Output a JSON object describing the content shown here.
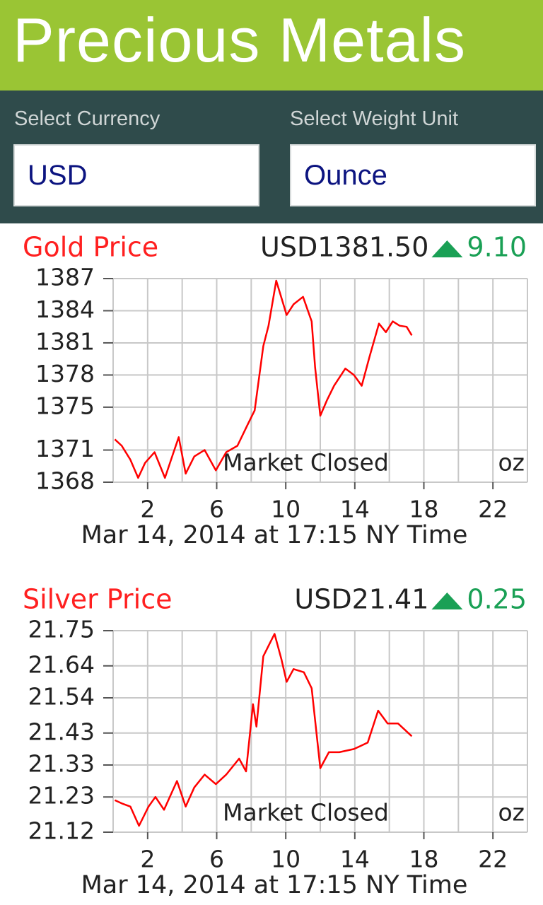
{
  "header": {
    "title": "Precious Metals"
  },
  "selectors": [
    {
      "label": "Select Currency",
      "value": "USD"
    },
    {
      "label": "Select Weight Unit",
      "value": "Ounce"
    }
  ],
  "chart_data": [
    {
      "type": "line",
      "title": "Gold Price",
      "price": "USD1381.50",
      "change": "9.10",
      "annotation": "Market Closed",
      "unit_label": "oz",
      "footnote": "Mar 14, 2014 at 17:15 NY Time",
      "color": "#ff0000",
      "grid": true,
      "xlim": [
        0,
        24
      ],
      "xticks": [
        2,
        6,
        10,
        14,
        18,
        22
      ],
      "xgrid": [
        0,
        2,
        4,
        6,
        8,
        10,
        12,
        14,
        16,
        18,
        20,
        22,
        24
      ],
      "ylim": [
        1368,
        1387
      ],
      "yticks": [
        1387,
        1384,
        1381,
        1378,
        1375,
        1371,
        1368
      ],
      "x": [
        0.1,
        0.5,
        1.0,
        1.45,
        1.85,
        2.4,
        3.0,
        3.5,
        3.8,
        4.2,
        4.7,
        5.3,
        5.95,
        6.55,
        7.2,
        7.8,
        8.2,
        8.7,
        9.0,
        9.45,
        10.05,
        10.45,
        11.0,
        11.5,
        11.7,
        12.0,
        12.4,
        12.8,
        13.45,
        13.95,
        14.4,
        14.85,
        15.4,
        15.8,
        16.2,
        16.6,
        17.0,
        17.3
      ],
      "values": [
        1372.0,
        1371.4,
        1370.1,
        1368.4,
        1369.8,
        1370.8,
        1368.4,
        1370.8,
        1372.2,
        1368.8,
        1370.4,
        1371.0,
        1369.1,
        1370.8,
        1371.4,
        1373.4,
        1374.7,
        1380.7,
        1382.6,
        1386.8,
        1383.6,
        1384.6,
        1385.3,
        1383.0,
        1378.7,
        1374.2,
        1375.7,
        1377.0,
        1378.6,
        1378.0,
        1377.0,
        1379.7,
        1382.8,
        1382.0,
        1383.0,
        1382.6,
        1382.5,
        1381.7
      ]
    },
    {
      "type": "line",
      "title": "Silver Price",
      "price": "USD21.41",
      "change": "0.25",
      "annotation": "Market Closed",
      "unit_label": "oz",
      "footnote": "Mar 14, 2014 at 17:15 NY Time",
      "color": "#ff0000",
      "grid": true,
      "xlim": [
        0,
        24
      ],
      "xticks": [
        2,
        6,
        10,
        14,
        18,
        22
      ],
      "xgrid": [
        0,
        2,
        4,
        6,
        8,
        10,
        12,
        14,
        16,
        18,
        20,
        22,
        24
      ],
      "ylim": [
        21.12,
        21.75
      ],
      "yticks": [
        21.75,
        21.64,
        21.54,
        21.43,
        21.33,
        21.23,
        21.12
      ],
      "x": [
        0.1,
        0.5,
        1.0,
        1.5,
        2.05,
        2.45,
        2.95,
        3.7,
        4.2,
        4.7,
        5.3,
        5.95,
        6.55,
        7.3,
        7.7,
        8.1,
        8.3,
        8.7,
        9.35,
        9.75,
        10.05,
        10.45,
        11.05,
        11.5,
        12.0,
        12.5,
        13.1,
        13.95,
        14.75,
        15.35,
        15.9,
        16.5,
        17.3
      ],
      "values": [
        21.22,
        21.21,
        21.2,
        21.14,
        21.2,
        21.23,
        21.19,
        21.28,
        21.2,
        21.26,
        21.3,
        21.27,
        21.3,
        21.35,
        21.31,
        21.52,
        21.45,
        21.67,
        21.74,
        21.66,
        21.59,
        21.63,
        21.62,
        21.57,
        21.32,
        21.37,
        21.37,
        21.38,
        21.4,
        21.5,
        21.46,
        21.46,
        21.42
      ]
    }
  ]
}
